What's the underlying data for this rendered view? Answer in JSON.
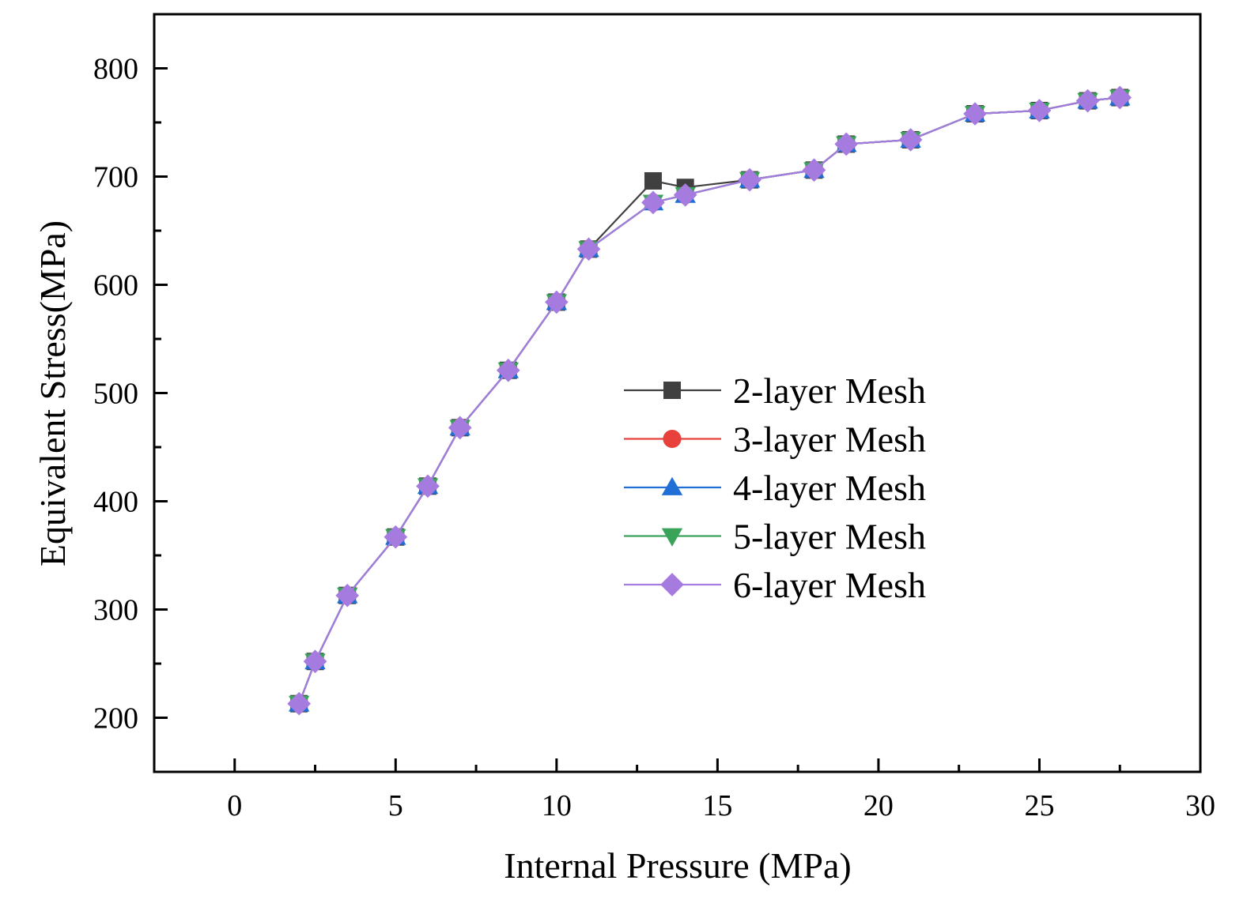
{
  "chart_data": {
    "type": "line",
    "title": "",
    "xlabel": "Internal Pressure (MPa)",
    "ylabel": "Equivalent Stress(MPa)",
    "xlim": [
      -2.5,
      30
    ],
    "ylim": [
      150,
      850
    ],
    "xticks": [
      0,
      5,
      10,
      15,
      20,
      25,
      30
    ],
    "xtick_labels": [
      "0",
      "5",
      "10",
      "15",
      "20",
      "25",
      "30"
    ],
    "xminor_ticks": [
      2.5,
      7.5,
      12.5,
      17.5,
      22.5,
      27.5
    ],
    "yticks": [
      200,
      300,
      400,
      500,
      600,
      700,
      800
    ],
    "ytick_labels": [
      "200",
      "300",
      "400",
      "500",
      "600",
      "700",
      "800"
    ],
    "yminor_ticks": [
      250,
      350,
      450,
      550,
      650,
      750
    ],
    "grid": false,
    "legend_position": "center-right",
    "x": [
      2,
      2.5,
      3.5,
      5,
      6,
      7,
      8.5,
      10,
      11,
      13,
      14,
      16,
      18,
      19,
      21,
      23,
      25,
      26.5,
      27.5
    ],
    "series": [
      {
        "name": "2-layer Mesh",
        "color": "#404040",
        "marker": "square",
        "values": [
          213,
          252,
          313,
          367,
          414,
          468,
          521,
          584,
          633,
          696,
          690,
          697,
          706,
          730,
          734,
          758,
          761,
          770,
          773
        ]
      },
      {
        "name": "3-layer Mesh",
        "color": "#e8413c",
        "marker": "circle",
        "values": [
          213,
          252,
          313,
          367,
          414,
          468,
          521,
          584,
          633,
          676,
          683,
          697,
          706,
          730,
          734,
          758,
          761,
          770,
          773
        ]
      },
      {
        "name": "4-layer Mesh",
        "color": "#1f6fd6",
        "marker": "triangle-up",
        "values": [
          213,
          252,
          313,
          367,
          414,
          468,
          521,
          584,
          633,
          676,
          683,
          697,
          706,
          730,
          734,
          758,
          761,
          770,
          773
        ]
      },
      {
        "name": "5-layer Mesh",
        "color": "#3aa35a",
        "marker": "triangle-down",
        "values": [
          213,
          252,
          313,
          367,
          414,
          468,
          521,
          584,
          633,
          676,
          683,
          697,
          706,
          730,
          734,
          758,
          761,
          770,
          773
        ]
      },
      {
        "name": "6-layer Mesh",
        "color": "#a67be0",
        "marker": "diamond",
        "values": [
          213,
          252,
          313,
          367,
          414,
          468,
          521,
          584,
          633,
          676,
          683,
          697,
          706,
          730,
          734,
          758,
          761,
          770,
          773
        ]
      }
    ]
  }
}
